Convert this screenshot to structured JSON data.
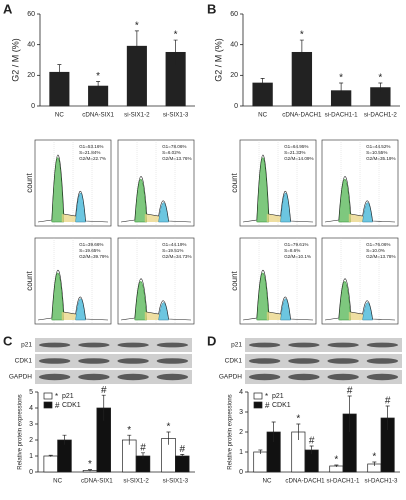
{
  "panels": [
    "A",
    "B",
    "C",
    "D"
  ],
  "chart_data": [
    {
      "type": "bar",
      "y_label": "G2 / M (%)",
      "categories": [
        "NC",
        "cDNA-SIX1",
        "si-SIX1-2",
        "si-SIX1-3"
      ],
      "values": [
        22,
        13,
        39,
        35
      ],
      "errors": [
        5,
        3,
        10,
        8
      ],
      "marks": [
        null,
        "*",
        "*",
        "*"
      ],
      "color": "#222222",
      "ylim": [
        0,
        60
      ],
      "yticks": [
        0,
        20,
        40,
        60
      ]
    },
    {
      "type": "bar",
      "y_label": "G2 / M (%)",
      "categories": [
        "NC",
        "cDNA-DACH1",
        "si-DACH1-1",
        "si-DACH1-2"
      ],
      "values": [
        15,
        35,
        10,
        12
      ],
      "errors": [
        3,
        8,
        5,
        3
      ],
      "marks": [
        null,
        "*",
        "*",
        "*"
      ],
      "color": "#222222",
      "ylim": [
        0,
        60
      ],
      "yticks": [
        0,
        20,
        40,
        60
      ]
    },
    {
      "type": "grouped_bar",
      "y_label": "Relative protein expressions",
      "categories": [
        "NC",
        "cDNA-SIX1",
        "si-SIX1-2",
        "si-SIX1-3"
      ],
      "series": [
        {
          "name": "p21",
          "symbol": "*",
          "color": "#ffffff",
          "values": [
            1,
            0.1,
            2,
            2.1
          ],
          "errors": [
            0.05,
            0.05,
            0.3,
            0.4
          ],
          "marks": [
            null,
            "*",
            "*",
            "*"
          ]
        },
        {
          "name": "CDK1",
          "symbol": "#",
          "color": "#111111",
          "values": [
            2,
            4,
            1,
            1
          ],
          "errors": [
            0.3,
            0.8,
            0.2,
            0.1
          ],
          "marks": [
            null,
            "#",
            "#",
            "#"
          ]
        }
      ],
      "ylim": [
        0,
        5
      ],
      "yticks": [
        0,
        1,
        2,
        3,
        4,
        5
      ]
    },
    {
      "type": "grouped_bar",
      "y_label": "Relative protein expressions",
      "categories": [
        "NC",
        "cDNA-DACH1",
        "si-DACH1-1",
        "si-DACH1-3"
      ],
      "series": [
        {
          "name": "p21",
          "symbol": "*",
          "color": "#ffffff",
          "values": [
            1,
            2,
            0.3,
            0.4
          ],
          "errors": [
            0.1,
            0.4,
            0.05,
            0.1
          ],
          "marks": [
            null,
            "*",
            "*",
            "*"
          ]
        },
        {
          "name": "CDK1",
          "symbol": "#",
          "color": "#111111",
          "values": [
            2,
            1.1,
            2.9,
            2.7
          ],
          "errors": [
            0.5,
            0.2,
            0.9,
            0.6
          ],
          "marks": [
            null,
            "#",
            "#",
            "#"
          ]
        }
      ],
      "ylim": [
        0,
        4
      ],
      "yticks": [
        0,
        1,
        2,
        3,
        4
      ]
    }
  ],
  "flow": [
    [
      {
        "ylabel": "count",
        "lines": [
          "G1=53.16%",
          "S=21.84%",
          "G2/M=22.7%"
        ]
      },
      {
        "lines": [
          "G1=78.06%",
          "S=6.02%",
          "G2/M=13.76%"
        ]
      },
      {
        "ylabel": "count",
        "lines": [
          "G1=39.66%",
          "S=19.65%",
          "G2/M=39.79%"
        ]
      },
      {
        "lines": [
          "G1=44.19%",
          "S=19.51%",
          "G2/M=34.73%"
        ]
      }
    ],
    [
      {
        "ylabel": "count",
        "lines": [
          "G1=64.95%",
          "S=21.33%",
          "G2/M=14.09%"
        ]
      },
      {
        "lines": [
          "G1=44.52%",
          "S=10.55%",
          "G2/M=35.19%"
        ]
      },
      {
        "ylabel": "count",
        "lines": [
          "G1=79.61%",
          "S=8.6%",
          "G2/M=10.1%"
        ]
      },
      {
        "lines": [
          "G1=76.06%",
          "S=10.0%",
          "G2/M=13.78%"
        ]
      }
    ]
  ],
  "blots": [
    [
      "p21",
      "CDK1",
      "GAPDH"
    ],
    [
      "p21",
      "CDK1",
      "GAPDH"
    ]
  ]
}
